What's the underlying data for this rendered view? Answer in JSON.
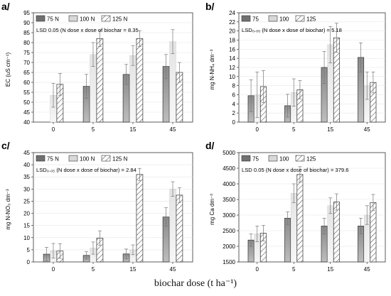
{
  "figure_caption": "biochar dose (t ha⁻¹)",
  "colors": {
    "n75": "#7a7a7a",
    "n100": "#d8d8d8",
    "n125": "#ffffff",
    "hatch": "#555555",
    "grid": "#e6e6e6"
  },
  "chart_data": [
    {
      "type": "bar",
      "panel_label": "a/",
      "ylabel": "EC (uS cm⁻¹)",
      "ylim": [
        40,
        95
      ],
      "yticks": [
        40,
        45,
        50,
        55,
        60,
        65,
        70,
        75,
        80,
        85,
        90,
        95
      ],
      "categories": [
        "0",
        "5",
        "15",
        "45"
      ],
      "legend": [
        "75 N",
        "100 N",
        "125 N"
      ],
      "lsd_text": "LSD 0.05 (N dose x dose of biochar = 8.35",
      "series": [
        {
          "name": "75 N",
          "values": [
            null,
            58,
            64,
            68
          ],
          "err": [
            null,
            6,
            5,
            6
          ]
        },
        {
          "name": "100 N",
          "values": [
            53.5,
            74,
            73.5,
            80.5
          ],
          "err": [
            6,
            6,
            5,
            6
          ]
        },
        {
          "name": "125 N",
          "values": [
            59,
            82,
            82,
            65
          ],
          "err": [
            5.5,
            4,
            4,
            5
          ]
        }
      ]
    },
    {
      "type": "bar",
      "panel_label": "b/",
      "ylabel": "mg N-NH₄ dm⁻³",
      "ylim": [
        0,
        24
      ],
      "yticks": [
        0,
        2,
        4,
        6,
        8,
        10,
        12,
        14,
        16,
        18,
        20,
        22,
        24
      ],
      "categories": [
        "0",
        "5",
        "15",
        "45"
      ],
      "legend": [
        "75",
        "100",
        "125"
      ],
      "lsd_text": "LSD₀.₀₅ (N dose x dose of biochar) = 5.18",
      "series": [
        {
          "name": "75",
          "values": [
            5.8,
            3.6,
            12,
            14.2
          ],
          "err": [
            3.5,
            2.5,
            3.5,
            3.2
          ]
        },
        {
          "name": "100",
          "values": [
            6,
            6.5,
            17,
            8
          ],
          "err": [
            5,
            3,
            4,
            3
          ]
        },
        {
          "name": "125",
          "values": [
            7.8,
            7.1,
            18.5,
            8.7
          ],
          "err": [
            3.5,
            2,
            3.2,
            2.3
          ]
        }
      ]
    },
    {
      "type": "bar",
      "panel_label": "c/",
      "ylabel": "mg N-NO₃ dm⁻³",
      "ylim": [
        0,
        45
      ],
      "yticks": [
        0,
        5,
        10,
        15,
        20,
        25,
        30,
        35,
        40,
        45
      ],
      "categories": [
        "0",
        "5",
        "15",
        "45"
      ],
      "legend": [
        "75 N",
        "100 N",
        "125 N"
      ],
      "lsd_text": "LSD₀.₀₅ (N dose x dose of biochar) = 2.84",
      "series": [
        {
          "name": "75 N",
          "values": [
            3.2,
            2.7,
            3.3,
            18.5
          ],
          "err": [
            2.8,
            1.5,
            2,
            3.8
          ]
        },
        {
          "name": "100 N",
          "values": [
            4.6,
            5.7,
            5,
            30
          ],
          "err": [
            3,
            2.5,
            2,
            3
          ]
        },
        {
          "name": "125 N",
          "values": [
            4.5,
            9.8,
            36,
            27.5
          ],
          "err": [
            3,
            3,
            2.5,
            3
          ]
        }
      ]
    },
    {
      "type": "bar",
      "panel_label": "d/",
      "ylabel": "mg Ca dm⁻³",
      "ylim": [
        1500,
        5000
      ],
      "yticks": [
        1500,
        2000,
        2500,
        3000,
        3500,
        4000,
        4500,
        5000
      ],
      "categories": [
        "0",
        "5",
        "15",
        "45"
      ],
      "legend": [
        "75",
        "100",
        "125"
      ],
      "lsd_text": "LSD 0.05 (N dose x dose of biochar) = 379.6",
      "series": [
        {
          "name": "75",
          "values": [
            2200,
            2900,
            2650,
            2650
          ],
          "err": [
            200,
            200,
            250,
            250
          ]
        },
        {
          "name": "100",
          "values": [
            2400,
            3700,
            3300,
            3000
          ],
          "err": [
            250,
            300,
            250,
            300
          ]
        },
        {
          "name": "125",
          "values": [
            2420,
            4300,
            3420,
            3400
          ],
          "err": [
            250,
            250,
            260,
            260
          ]
        }
      ]
    }
  ]
}
